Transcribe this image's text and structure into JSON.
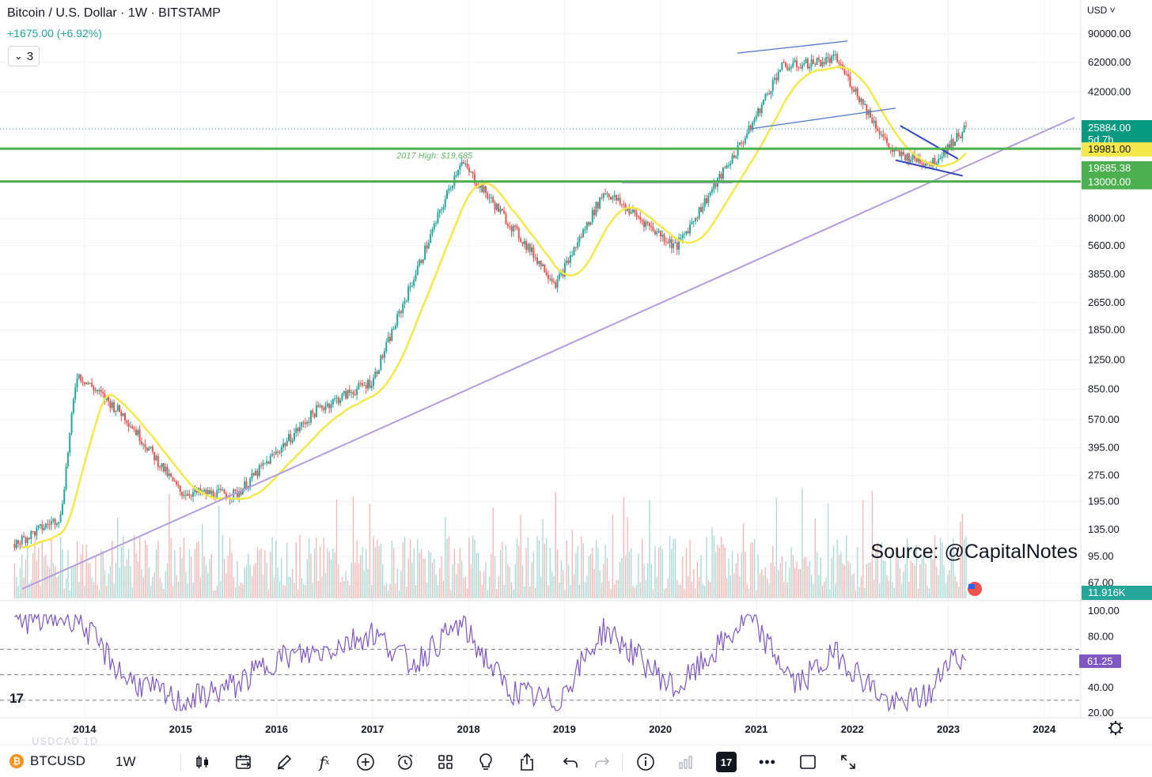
{
  "header": {
    "title": "Bitcoin / U.S. Dollar · 1W · BITSTAMP",
    "change": "+1675.00 (+6.92%)",
    "indicator_count": "3",
    "currency": "USD"
  },
  "chart_data": [
    {
      "type": "candlestick",
      "title": "Bitcoin / U.S. Dollar · 1W · BITSTAMP",
      "scale": "log",
      "ylim": [
        45,
        110000
      ],
      "y_tick_labels": [
        "90000.00",
        "62000.00",
        "42000.00",
        "8000.00",
        "5600.00",
        "3850.00",
        "2650.00",
        "1850.00",
        "1250.00",
        "850.00",
        "570.00",
        "395.00",
        "275.00",
        "195.00",
        "135.00",
        "95.00",
        "67.00"
      ],
      "x_tick_labels": [
        "2014",
        "2015",
        "2016",
        "2017",
        "2018",
        "2019",
        "2020",
        "2021",
        "2022",
        "2023",
        "2024"
      ],
      "x": [
        "2013-04",
        "2013-10",
        "2013-12",
        "2014-06",
        "2015-01",
        "2015-08",
        "2016-06",
        "2017-01",
        "2017-12",
        "2018-12",
        "2019-06",
        "2020-03",
        "2020-12",
        "2021-04",
        "2021-11",
        "2022-06",
        "2022-11",
        "2023-03"
      ],
      "series": [
        {
          "values": [
            110,
            160,
            1050,
            600,
            220,
            215,
            650,
            950,
            17000,
            3400,
            11500,
            5500,
            25000,
            58000,
            65000,
            19000,
            16500,
            25884
          ]
        }
      ],
      "horizontal_lines": [
        {
          "value": 19981,
          "color": "#4caf50",
          "label": "19981.00"
        },
        {
          "value": 13000,
          "color": "#4caf50",
          "label": "13000.00"
        }
      ],
      "price_labels": [
        {
          "value": 25884,
          "label": "25884.00",
          "sublabel": "5d 7h",
          "color": "#089981"
        },
        {
          "value": 19981,
          "label": "19981.00",
          "color": "#f5e84b"
        },
        {
          "value": 19685.38,
          "label": "19685.38",
          "color": "#4caf50"
        },
        {
          "value": 13000,
          "label": "13000.00",
          "color": "#4caf50"
        }
      ],
      "annotations": [
        "2017 High: $19,685",
        "Source: @CapitalNotes"
      ],
      "volume_label": "11.916K"
    },
    {
      "type": "line",
      "ylim": [
        20,
        100
      ],
      "y_tick_labels": [
        "100.00",
        "80.00",
        "40.00",
        "20.00"
      ],
      "bands": [
        70,
        50,
        30
      ],
      "x": [
        "2013-04",
        "2013-12",
        "2014-06",
        "2015-01",
        "2015-08",
        "2016-01",
        "2016-06",
        "2017-01",
        "2017-06",
        "2017-12",
        "2018-06",
        "2018-12",
        "2019-06",
        "2020-03",
        "2020-12",
        "2021-06",
        "2021-11",
        "2022-06",
        "2022-11",
        "2023-01",
        "2023-03"
      ],
      "series": [
        {
          "values": [
            92,
            95,
            48,
            28,
            42,
            63,
            67,
            83,
            58,
            90,
            38,
            28,
            86,
            38,
            95,
            42,
            67,
            25,
            35,
            65,
            61.25
          ]
        }
      ],
      "last_value_label": "61.25"
    }
  ],
  "toolbar": {
    "symbol": "BTCUSD",
    "interval": "1W",
    "btc_glyph": "₿",
    "watermark": "USDCAD   1D"
  },
  "colors": {
    "up": "#26a69a",
    "down": "#ef5350",
    "ma": "#f5e84b",
    "trendline": "#b39ddb",
    "channel": "#5b7fce",
    "wedge": "#2d47b8",
    "rsi": "#7e57c2"
  }
}
